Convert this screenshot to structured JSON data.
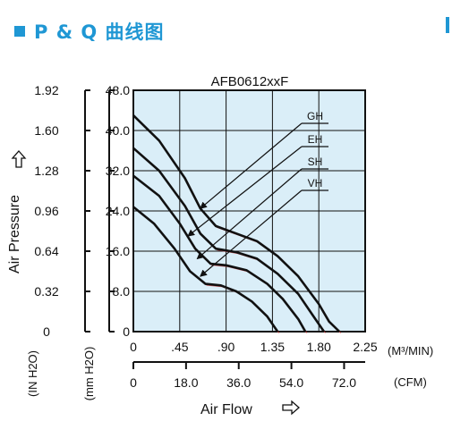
{
  "header": {
    "title": "P & Q 曲线图",
    "accent_color": "#1f97d4"
  },
  "chart_data": {
    "type": "line",
    "title": "AFB0612xxF",
    "ylabel": "Air Pressure",
    "ylabel_unit": "(IN H2O)",
    "ylabel2_unit": "(mm H2O)",
    "xlabel": "Air Flow",
    "x_unit_m3": "(M³/MIN)",
    "x_unit_cfm": "(CFM)",
    "xlim": [
      0,
      2.25
    ],
    "ylim": [
      0,
      48
    ],
    "y_ticks_mm": [
      "48.0",
      "40.0",
      "32.0",
      "24.0",
      "16.0",
      "8.0",
      "0"
    ],
    "y_ticks_in": [
      "1.92",
      "1.60",
      "1.28",
      "0.96",
      "0.64",
      "0.32",
      "0"
    ],
    "x_ticks_m3": [
      "0",
      ".45",
      ".90",
      "1.35",
      "1.80",
      "2.25"
    ],
    "x_ticks_cfm": [
      "0",
      "18.0",
      "36.0",
      "54.0",
      "72.0"
    ],
    "grid": true,
    "plot_background": "#daeef8",
    "series": [
      {
        "name": "GH",
        "points": [
          [
            0,
            43.0
          ],
          [
            0.25,
            38.0
          ],
          [
            0.5,
            30.5
          ],
          [
            0.65,
            24.5
          ],
          [
            0.8,
            21.0
          ],
          [
            1.0,
            19.5
          ],
          [
            1.2,
            18.0
          ],
          [
            1.4,
            15.0
          ],
          [
            1.6,
            11.0
          ],
          [
            1.8,
            5.5
          ],
          [
            1.9,
            2.0
          ],
          [
            2.0,
            0.0
          ]
        ]
      },
      {
        "name": "EH",
        "points": [
          [
            0,
            36.5
          ],
          [
            0.25,
            32.0
          ],
          [
            0.5,
            25.0
          ],
          [
            0.65,
            19.5
          ],
          [
            0.8,
            16.5
          ],
          [
            1.0,
            15.8
          ],
          [
            1.2,
            14.5
          ],
          [
            1.4,
            11.5
          ],
          [
            1.6,
            7.5
          ],
          [
            1.75,
            3.0
          ],
          [
            1.85,
            0.0
          ]
        ]
      },
      {
        "name": "SH",
        "points": [
          [
            0,
            31.0
          ],
          [
            0.25,
            27.0
          ],
          [
            0.45,
            21.5
          ],
          [
            0.6,
            16.5
          ],
          [
            0.75,
            13.5
          ],
          [
            0.9,
            13.2
          ],
          [
            1.1,
            12.2
          ],
          [
            1.3,
            9.5
          ],
          [
            1.45,
            6.5
          ],
          [
            1.6,
            2.5
          ],
          [
            1.67,
            0.0
          ]
        ]
      },
      {
        "name": "VH",
        "points": [
          [
            0,
            24.8
          ],
          [
            0.2,
            21.5
          ],
          [
            0.4,
            16.5
          ],
          [
            0.55,
            12.0
          ],
          [
            0.7,
            9.5
          ],
          [
            0.85,
            9.2
          ],
          [
            1.0,
            8.0
          ],
          [
            1.15,
            6.0
          ],
          [
            1.3,
            3.0
          ],
          [
            1.4,
            0.0
          ]
        ]
      }
    ],
    "annotations": [
      {
        "label": "GH",
        "target": [
          0.65,
          24.5
        ]
      },
      {
        "label": "EH",
        "target": [
          0.53,
          19.0
        ]
      },
      {
        "label": "SH",
        "target": [
          0.62,
          14.5
        ]
      },
      {
        "label": "VH",
        "target": [
          0.65,
          11.0
        ]
      }
    ]
  }
}
